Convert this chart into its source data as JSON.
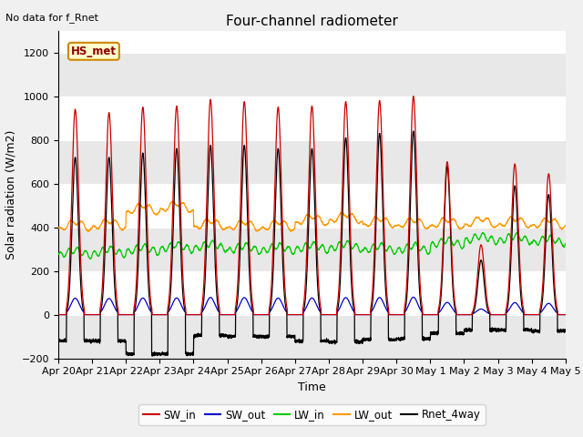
{
  "title": "Four-channel radiometer",
  "subtitle": "No data for f_Rnet",
  "ylabel": "Solar radiation (W/m2)",
  "xlabel": "Time",
  "ylim": [
    -200,
    1300
  ],
  "yticks": [
    -200,
    0,
    200,
    400,
    600,
    800,
    1000,
    1200
  ],
  "legend_label": "HS_met",
  "colors": {
    "SW_in": "#cc0000",
    "SW_out": "#0000cc",
    "LW_in": "#00cc00",
    "LW_out": "#ff9900",
    "Rnet_4way": "#000000"
  },
  "n_days": 15,
  "tick_labels": [
    "Apr 20",
    "Apr 21",
    "Apr 22",
    "Apr 23",
    "Apr 24",
    "Apr 25",
    "Apr 26",
    "Apr 27",
    "Apr 28",
    "Apr 29",
    "Apr 30",
    "May 1",
    "May 2",
    "May 3",
    "May 4",
    "May 5"
  ],
  "sw_in_peaks": [
    940,
    925,
    950,
    955,
    985,
    975,
    950,
    955,
    975,
    980,
    1000,
    700,
    320,
    690,
    645
  ],
  "rnet_peaks": [
    720,
    720,
    740,
    760,
    775,
    775,
    760,
    760,
    810,
    830,
    840,
    680,
    250,
    590,
    550
  ],
  "lw_in_base": [
    265,
    270,
    280,
    290,
    295,
    285,
    285,
    290,
    295,
    285,
    285,
    310,
    330,
    330,
    320
  ],
  "lw_out_base": [
    375,
    380,
    450,
    460,
    380,
    375,
    375,
    400,
    410,
    390,
    385,
    385,
    390,
    390,
    385
  ]
}
